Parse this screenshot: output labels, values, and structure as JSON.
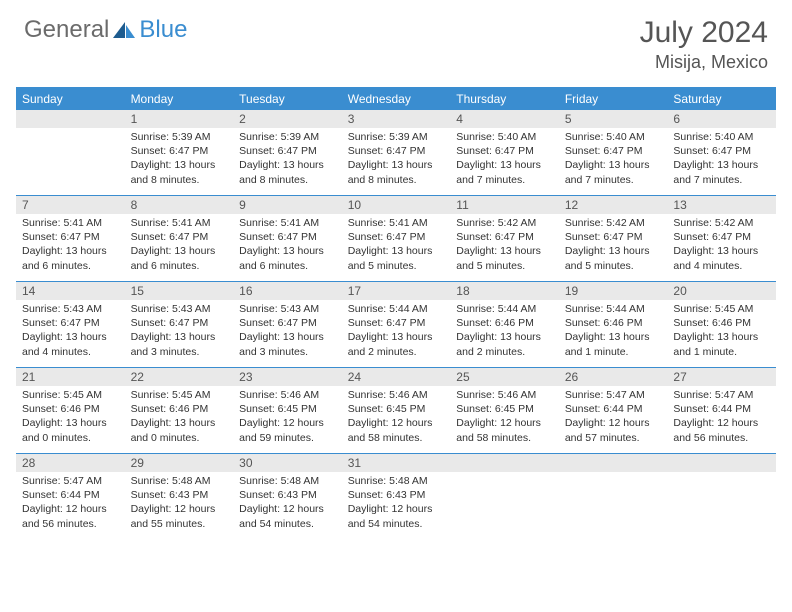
{
  "logo": {
    "general": "General",
    "blue": "Blue"
  },
  "title": {
    "month_year": "July 2024",
    "location": "Misija, Mexico"
  },
  "weekdays": [
    "Sunday",
    "Monday",
    "Tuesday",
    "Wednesday",
    "Thursday",
    "Friday",
    "Saturday"
  ],
  "colors": {
    "accent": "#3a8dd0",
    "header_bg": "#3a8dd0",
    "daynum_bg": "#e9e9e9",
    "text_gray": "#555555",
    "body_text": "#333333",
    "logo_gray": "#6b6b6b"
  },
  "layout": {
    "first_weekday_index": 1,
    "days_in_month": 31
  },
  "days": [
    {
      "n": 1,
      "sunrise": "5:39 AM",
      "sunset": "6:47 PM",
      "daylight": "13 hours and 8 minutes."
    },
    {
      "n": 2,
      "sunrise": "5:39 AM",
      "sunset": "6:47 PM",
      "daylight": "13 hours and 8 minutes."
    },
    {
      "n": 3,
      "sunrise": "5:39 AM",
      "sunset": "6:47 PM",
      "daylight": "13 hours and 8 minutes."
    },
    {
      "n": 4,
      "sunrise": "5:40 AM",
      "sunset": "6:47 PM",
      "daylight": "13 hours and 7 minutes."
    },
    {
      "n": 5,
      "sunrise": "5:40 AM",
      "sunset": "6:47 PM",
      "daylight": "13 hours and 7 minutes."
    },
    {
      "n": 6,
      "sunrise": "5:40 AM",
      "sunset": "6:47 PM",
      "daylight": "13 hours and 7 minutes."
    },
    {
      "n": 7,
      "sunrise": "5:41 AM",
      "sunset": "6:47 PM",
      "daylight": "13 hours and 6 minutes."
    },
    {
      "n": 8,
      "sunrise": "5:41 AM",
      "sunset": "6:47 PM",
      "daylight": "13 hours and 6 minutes."
    },
    {
      "n": 9,
      "sunrise": "5:41 AM",
      "sunset": "6:47 PM",
      "daylight": "13 hours and 6 minutes."
    },
    {
      "n": 10,
      "sunrise": "5:41 AM",
      "sunset": "6:47 PM",
      "daylight": "13 hours and 5 minutes."
    },
    {
      "n": 11,
      "sunrise": "5:42 AM",
      "sunset": "6:47 PM",
      "daylight": "13 hours and 5 minutes."
    },
    {
      "n": 12,
      "sunrise": "5:42 AM",
      "sunset": "6:47 PM",
      "daylight": "13 hours and 5 minutes."
    },
    {
      "n": 13,
      "sunrise": "5:42 AM",
      "sunset": "6:47 PM",
      "daylight": "13 hours and 4 minutes."
    },
    {
      "n": 14,
      "sunrise": "5:43 AM",
      "sunset": "6:47 PM",
      "daylight": "13 hours and 4 minutes."
    },
    {
      "n": 15,
      "sunrise": "5:43 AM",
      "sunset": "6:47 PM",
      "daylight": "13 hours and 3 minutes."
    },
    {
      "n": 16,
      "sunrise": "5:43 AM",
      "sunset": "6:47 PM",
      "daylight": "13 hours and 3 minutes."
    },
    {
      "n": 17,
      "sunrise": "5:44 AM",
      "sunset": "6:47 PM",
      "daylight": "13 hours and 2 minutes."
    },
    {
      "n": 18,
      "sunrise": "5:44 AM",
      "sunset": "6:46 PM",
      "daylight": "13 hours and 2 minutes."
    },
    {
      "n": 19,
      "sunrise": "5:44 AM",
      "sunset": "6:46 PM",
      "daylight": "13 hours and 1 minute."
    },
    {
      "n": 20,
      "sunrise": "5:45 AM",
      "sunset": "6:46 PM",
      "daylight": "13 hours and 1 minute."
    },
    {
      "n": 21,
      "sunrise": "5:45 AM",
      "sunset": "6:46 PM",
      "daylight": "13 hours and 0 minutes."
    },
    {
      "n": 22,
      "sunrise": "5:45 AM",
      "sunset": "6:46 PM",
      "daylight": "13 hours and 0 minutes."
    },
    {
      "n": 23,
      "sunrise": "5:46 AM",
      "sunset": "6:45 PM",
      "daylight": "12 hours and 59 minutes."
    },
    {
      "n": 24,
      "sunrise": "5:46 AM",
      "sunset": "6:45 PM",
      "daylight": "12 hours and 58 minutes."
    },
    {
      "n": 25,
      "sunrise": "5:46 AM",
      "sunset": "6:45 PM",
      "daylight": "12 hours and 58 minutes."
    },
    {
      "n": 26,
      "sunrise": "5:47 AM",
      "sunset": "6:44 PM",
      "daylight": "12 hours and 57 minutes."
    },
    {
      "n": 27,
      "sunrise": "5:47 AM",
      "sunset": "6:44 PM",
      "daylight": "12 hours and 56 minutes."
    },
    {
      "n": 28,
      "sunrise": "5:47 AM",
      "sunset": "6:44 PM",
      "daylight": "12 hours and 56 minutes."
    },
    {
      "n": 29,
      "sunrise": "5:48 AM",
      "sunset": "6:43 PM",
      "daylight": "12 hours and 55 minutes."
    },
    {
      "n": 30,
      "sunrise": "5:48 AM",
      "sunset": "6:43 PM",
      "daylight": "12 hours and 54 minutes."
    },
    {
      "n": 31,
      "sunrise": "5:48 AM",
      "sunset": "6:43 PM",
      "daylight": "12 hours and 54 minutes."
    }
  ],
  "labels": {
    "sunrise_prefix": "Sunrise: ",
    "sunset_prefix": "Sunset: ",
    "daylight_prefix": "Daylight: "
  }
}
